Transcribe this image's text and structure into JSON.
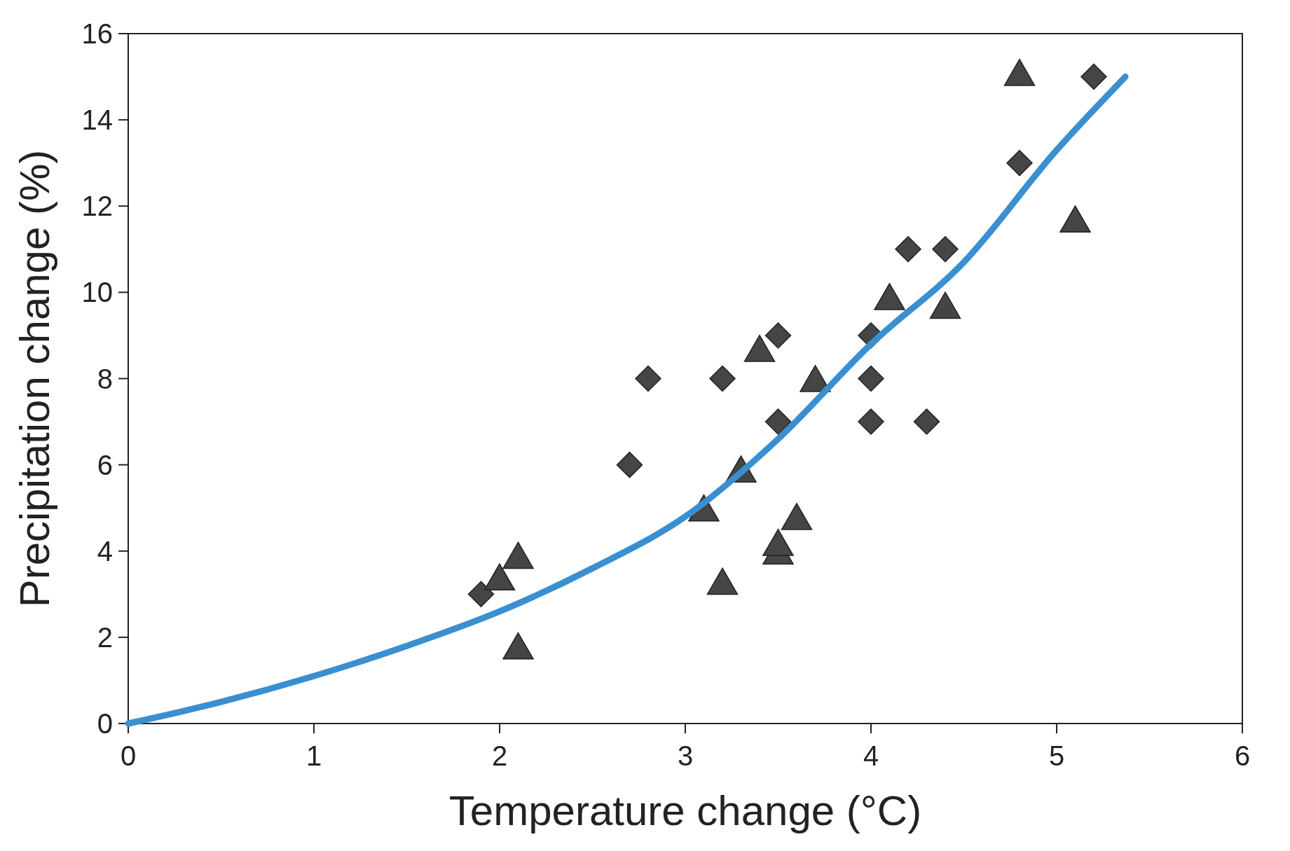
{
  "chart_data": {
    "type": "scatter",
    "xlabel": "Temperature change (°C)",
    "ylabel": "Precipitation change (%)",
    "xlim": [
      0,
      6
    ],
    "xticks": [
      0,
      1,
      2,
      3,
      4,
      5,
      6
    ],
    "ylim": [
      0,
      16
    ],
    "yticks": [
      0,
      2,
      4,
      6,
      8,
      10,
      12,
      14,
      16
    ],
    "grid": false,
    "series": [
      {
        "type": "scatter",
        "marker": "diamond",
        "color": "#454545",
        "x": [
          1.9,
          2.7,
          2.8,
          3.2,
          3.5,
          3.5,
          4.0,
          4.0,
          4.0,
          4.2,
          4.3,
          4.4,
          4.8,
          5.2
        ],
        "values": [
          3,
          6,
          8,
          8,
          9,
          7,
          9,
          8,
          7,
          11,
          7,
          11,
          13,
          15
        ]
      },
      {
        "type": "scatter",
        "marker": "triangle",
        "color": "#454545",
        "x": [
          2.0,
          2.1,
          2.1,
          3.1,
          3.2,
          3.3,
          3.4,
          3.5,
          3.5,
          3.6,
          3.7,
          4.1,
          4.4,
          4.8,
          5.1
        ],
        "values": [
          3.3,
          3.8,
          1.7,
          4.9,
          3.2,
          5.8,
          8.6,
          3.9,
          4.1,
          4.7,
          7.9,
          9.8,
          9.6,
          15,
          11.6
        ]
      },
      {
        "type": "line",
        "line_style": "solid",
        "color": "#3a8fd0",
        "x": [
          0,
          0.5,
          1,
          1.5,
          2,
          2.5,
          3,
          3.5,
          4,
          4.5,
          5,
          5.37
        ],
        "values": [
          0,
          0.5,
          1.1,
          1.8,
          2.6,
          3.6,
          4.8,
          6.6,
          8.8,
          10.7,
          13.3,
          15.0
        ]
      }
    ]
  }
}
